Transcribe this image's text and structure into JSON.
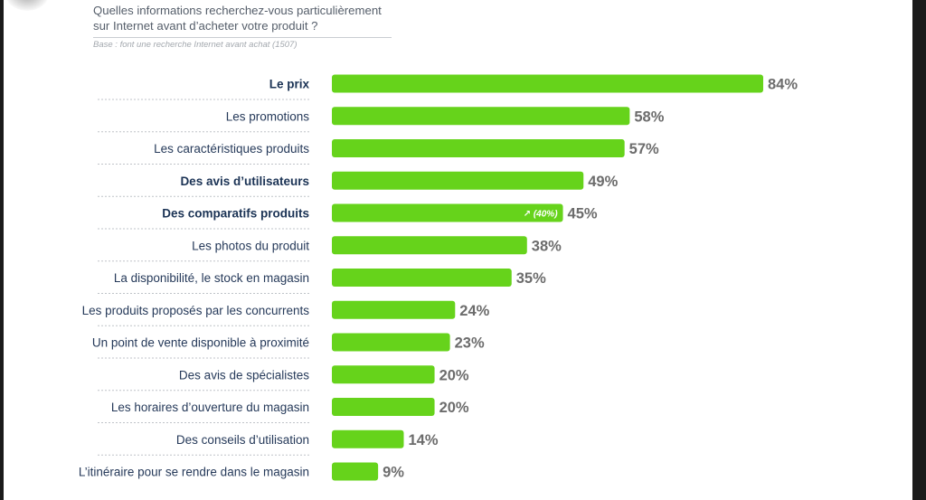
{
  "question": {
    "line1": "Quelles informations recherchez-vous particulièrement",
    "line2": "sur Internet avant d’acheter votre produit ?",
    "base": "Base : font une recherche Internet avant achat (1507)"
  },
  "colors": {
    "bar": "#66d31b",
    "label": "#263a5a",
    "value": "#6c6c6c"
  },
  "chart_data": {
    "type": "bar",
    "orientation": "horizontal",
    "title": "Quelles informations recherchez-vous particulièrement sur Internet avant d’acheter votre produit ?",
    "unit": "%",
    "xlim": [
      0,
      100
    ],
    "categories": [
      "Le  prix",
      "Les promotions",
      "Les caractéristiques produits",
      "Des avis d’utilisateurs",
      "Des comparatifs produits",
      "Les photos du produit",
      "La disponibilité, le stock en magasin",
      "Les produits proposés par les concurrents",
      "Un point de vente disponible à proximité",
      "Des avis de spécialistes",
      "Les horaires d’ouverture du magasin",
      "Des conseils d’utilisation",
      "L’itinéraire pour se rendre dans le magasin"
    ],
    "values": [
      84,
      58,
      57,
      49,
      45,
      38,
      35,
      24,
      23,
      20,
      20,
      14,
      9
    ],
    "value_labels": [
      "84%",
      "58%",
      "57%",
      "49%",
      "45%",
      "38%",
      "35%",
      "24%",
      "23%",
      "20%",
      "20%",
      "14%",
      "9%"
    ],
    "bold": [
      true,
      false,
      false,
      true,
      true,
      false,
      false,
      false,
      false,
      false,
      false,
      false,
      false
    ],
    "annotations": [
      {
        "category_index": 4,
        "text": "↗ (40%)"
      }
    ]
  }
}
